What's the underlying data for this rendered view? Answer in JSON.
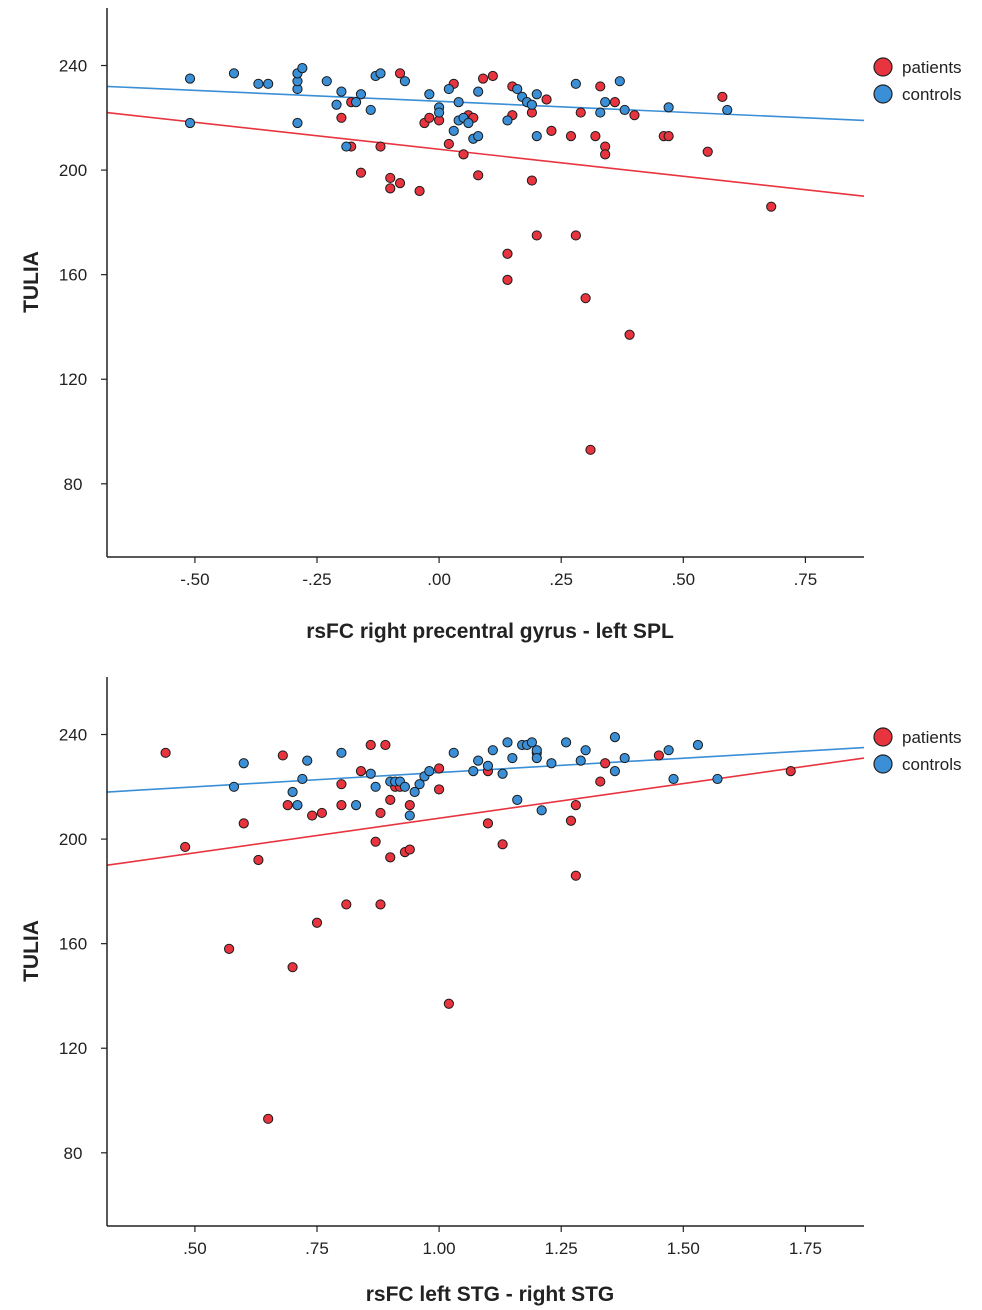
{
  "colors": {
    "patients": "#e8343f",
    "controls": "#3a8fd6",
    "axis": "#222222"
  },
  "chart_data": [
    {
      "type": "scatter",
      "title": "",
      "xlabel": "rsFC right precentral gyrus - left SPL",
      "ylabel": "TULIA",
      "xlim": [
        -0.68,
        0.87
      ],
      "ylim": [
        52,
        262
      ],
      "xticks": [
        -0.5,
        -0.25,
        0.0,
        0.25,
        0.5,
        0.75
      ],
      "xtick_labels": [
        "-.50",
        "-.25",
        ".00",
        ".25",
        ".50",
        ".75"
      ],
      "yticks": [
        80,
        120,
        160,
        200,
        240
      ],
      "ytick_labels": [
        "80",
        "120",
        "160",
        "200",
        "240"
      ],
      "legend": {
        "position": "right",
        "entries": [
          "patients",
          "controls"
        ]
      },
      "series": [
        {
          "name": "patients",
          "color": "#e8343f",
          "fit": {
            "x": [
              -0.68,
              0.87
            ],
            "y": [
              222,
              190
            ]
          },
          "points": [
            [
              -0.2,
              220
            ],
            [
              -0.18,
              226
            ],
            [
              -0.18,
              209
            ],
            [
              -0.16,
              199
            ],
            [
              -0.12,
              209
            ],
            [
              -0.1,
              197
            ],
            [
              -0.1,
              193
            ],
            [
              -0.08,
              195
            ],
            [
              -0.08,
              237
            ],
            [
              -0.04,
              192
            ],
            [
              -0.03,
              218
            ],
            [
              -0.02,
              220
            ],
            [
              0.0,
              219
            ],
            [
              0.02,
              210
            ],
            [
              0.03,
              233
            ],
            [
              0.05,
              206
            ],
            [
              0.06,
              221
            ],
            [
              0.07,
              220
            ],
            [
              0.08,
              198
            ],
            [
              0.09,
              235
            ],
            [
              0.11,
              236
            ],
            [
              0.14,
              168
            ],
            [
              0.14,
              158
            ],
            [
              0.15,
              232
            ],
            [
              0.15,
              221
            ],
            [
              0.19,
              222
            ],
            [
              0.19,
              196
            ],
            [
              0.2,
              175
            ],
            [
              0.22,
              227
            ],
            [
              0.23,
              215
            ],
            [
              0.27,
              213
            ],
            [
              0.28,
              175
            ],
            [
              0.29,
              222
            ],
            [
              0.3,
              151
            ],
            [
              0.31,
              93
            ],
            [
              0.32,
              213
            ],
            [
              0.33,
              232
            ],
            [
              0.34,
              209
            ],
            [
              0.34,
              206
            ],
            [
              0.36,
              226
            ],
            [
              0.39,
              137
            ],
            [
              0.4,
              221
            ],
            [
              0.46,
              213
            ],
            [
              0.47,
              213
            ],
            [
              0.55,
              207
            ],
            [
              0.58,
              228
            ],
            [
              0.68,
              186
            ]
          ]
        },
        {
          "name": "controls",
          "color": "#3a8fd6",
          "fit": {
            "x": [
              -0.68,
              0.87
            ],
            "y": [
              232,
              219
            ]
          },
          "points": [
            [
              -0.51,
              235
            ],
            [
              -0.51,
              218
            ],
            [
              -0.42,
              237
            ],
            [
              -0.37,
              233
            ],
            [
              -0.35,
              233
            ],
            [
              -0.29,
              231
            ],
            [
              -0.29,
              234
            ],
            [
              -0.29,
              237
            ],
            [
              -0.28,
              239
            ],
            [
              -0.29,
              218
            ],
            [
              -0.23,
              234
            ],
            [
              -0.21,
              225
            ],
            [
              -0.2,
              230
            ],
            [
              -0.19,
              209
            ],
            [
              -0.17,
              226
            ],
            [
              -0.16,
              229
            ],
            [
              -0.14,
              223
            ],
            [
              -0.13,
              236
            ],
            [
              -0.12,
              237
            ],
            [
              -0.07,
              234
            ],
            [
              -0.02,
              229
            ],
            [
              0.0,
              224
            ],
            [
              0.0,
              222
            ],
            [
              0.02,
              231
            ],
            [
              0.03,
              215
            ],
            [
              0.04,
              219
            ],
            [
              0.04,
              226
            ],
            [
              0.05,
              220
            ],
            [
              0.06,
              218
            ],
            [
              0.07,
              212
            ],
            [
              0.08,
              213
            ],
            [
              0.08,
              230
            ],
            [
              0.14,
              219
            ],
            [
              0.16,
              231
            ],
            [
              0.17,
              228
            ],
            [
              0.18,
              226
            ],
            [
              0.19,
              225
            ],
            [
              0.2,
              229
            ],
            [
              0.2,
              213
            ],
            [
              0.28,
              233
            ],
            [
              0.33,
              222
            ],
            [
              0.34,
              226
            ],
            [
              0.37,
              234
            ],
            [
              0.38,
              223
            ],
            [
              0.47,
              224
            ],
            [
              0.59,
              223
            ]
          ]
        }
      ]
    },
    {
      "type": "scatter",
      "title": "",
      "xlabel": "rsFC left STG - right STG",
      "ylabel": "TULIA",
      "xlim": [
        0.32,
        1.87
      ],
      "ylim": [
        52,
        262
      ],
      "xticks": [
        0.5,
        0.75,
        1.0,
        1.25,
        1.5,
        1.75
      ],
      "xtick_labels": [
        ".50",
        ".75",
        "1.00",
        "1.25",
        "1.50",
        "1.75"
      ],
      "yticks": [
        80,
        120,
        160,
        200,
        240
      ],
      "ytick_labels": [
        "80",
        "120",
        "160",
        "200",
        "240"
      ],
      "legend": {
        "position": "right",
        "entries": [
          "patients",
          "controls"
        ]
      },
      "series": [
        {
          "name": "patients",
          "color": "#e8343f",
          "fit": {
            "x": [
              0.32,
              1.87
            ],
            "y": [
              190,
              231
            ]
          },
          "points": [
            [
              0.44,
              233
            ],
            [
              0.48,
              197
            ],
            [
              0.57,
              158
            ],
            [
              0.6,
              206
            ],
            [
              0.63,
              192
            ],
            [
              0.65,
              93
            ],
            [
              0.68,
              232
            ],
            [
              0.69,
              213
            ],
            [
              0.7,
              151
            ],
            [
              0.74,
              209
            ],
            [
              0.75,
              168
            ],
            [
              0.76,
              210
            ],
            [
              0.8,
              213
            ],
            [
              0.8,
              221
            ],
            [
              0.81,
              175
            ],
            [
              0.84,
              226
            ],
            [
              0.86,
              236
            ],
            [
              0.87,
              199
            ],
            [
              0.88,
              175
            ],
            [
              0.88,
              210
            ],
            [
              0.89,
              236
            ],
            [
              0.9,
              215
            ],
            [
              0.9,
              193
            ],
            [
              0.91,
              220
            ],
            [
              0.92,
              220
            ],
            [
              0.93,
              195
            ],
            [
              0.94,
              213
            ],
            [
              0.94,
              196
            ],
            [
              1.0,
              227
            ],
            [
              1.0,
              219
            ],
            [
              1.02,
              137
            ],
            [
              1.1,
              206
            ],
            [
              1.1,
              226
            ],
            [
              1.13,
              198
            ],
            [
              1.27,
              207
            ],
            [
              1.28,
              213
            ],
            [
              1.28,
              186
            ],
            [
              1.33,
              222
            ],
            [
              1.34,
              229
            ],
            [
              1.45,
              232
            ],
            [
              1.72,
              226
            ]
          ]
        },
        {
          "name": "controls",
          "color": "#3a8fd6",
          "fit": {
            "x": [
              0.32,
              1.87
            ],
            "y": [
              218,
              235
            ]
          },
          "points": [
            [
              0.58,
              220
            ],
            [
              0.6,
              229
            ],
            [
              0.7,
              218
            ],
            [
              0.71,
              213
            ],
            [
              0.72,
              223
            ],
            [
              0.73,
              230
            ],
            [
              0.8,
              233
            ],
            [
              0.83,
              213
            ],
            [
              0.86,
              225
            ],
            [
              0.87,
              220
            ],
            [
              0.9,
              222
            ],
            [
              0.91,
              222
            ],
            [
              0.92,
              222
            ],
            [
              0.93,
              220
            ],
            [
              0.94,
              209
            ],
            [
              0.95,
              218
            ],
            [
              0.96,
              221
            ],
            [
              0.97,
              224
            ],
            [
              0.98,
              226
            ],
            [
              1.03,
              233
            ],
            [
              1.07,
              226
            ],
            [
              1.08,
              230
            ],
            [
              1.1,
              228
            ],
            [
              1.11,
              234
            ],
            [
              1.13,
              225
            ],
            [
              1.14,
              237
            ],
            [
              1.15,
              231
            ],
            [
              1.16,
              215
            ],
            [
              1.17,
              236
            ],
            [
              1.18,
              236
            ],
            [
              1.19,
              237
            ],
            [
              1.2,
              233
            ],
            [
              1.2,
              234
            ],
            [
              1.2,
              231
            ],
            [
              1.21,
              211
            ],
            [
              1.23,
              229
            ],
            [
              1.26,
              237
            ],
            [
              1.29,
              230
            ],
            [
              1.3,
              234
            ],
            [
              1.36,
              226
            ],
            [
              1.36,
              239
            ],
            [
              1.38,
              231
            ],
            [
              1.47,
              234
            ],
            [
              1.48,
              223
            ],
            [
              1.53,
              236
            ],
            [
              1.57,
              223
            ]
          ]
        }
      ]
    }
  ]
}
